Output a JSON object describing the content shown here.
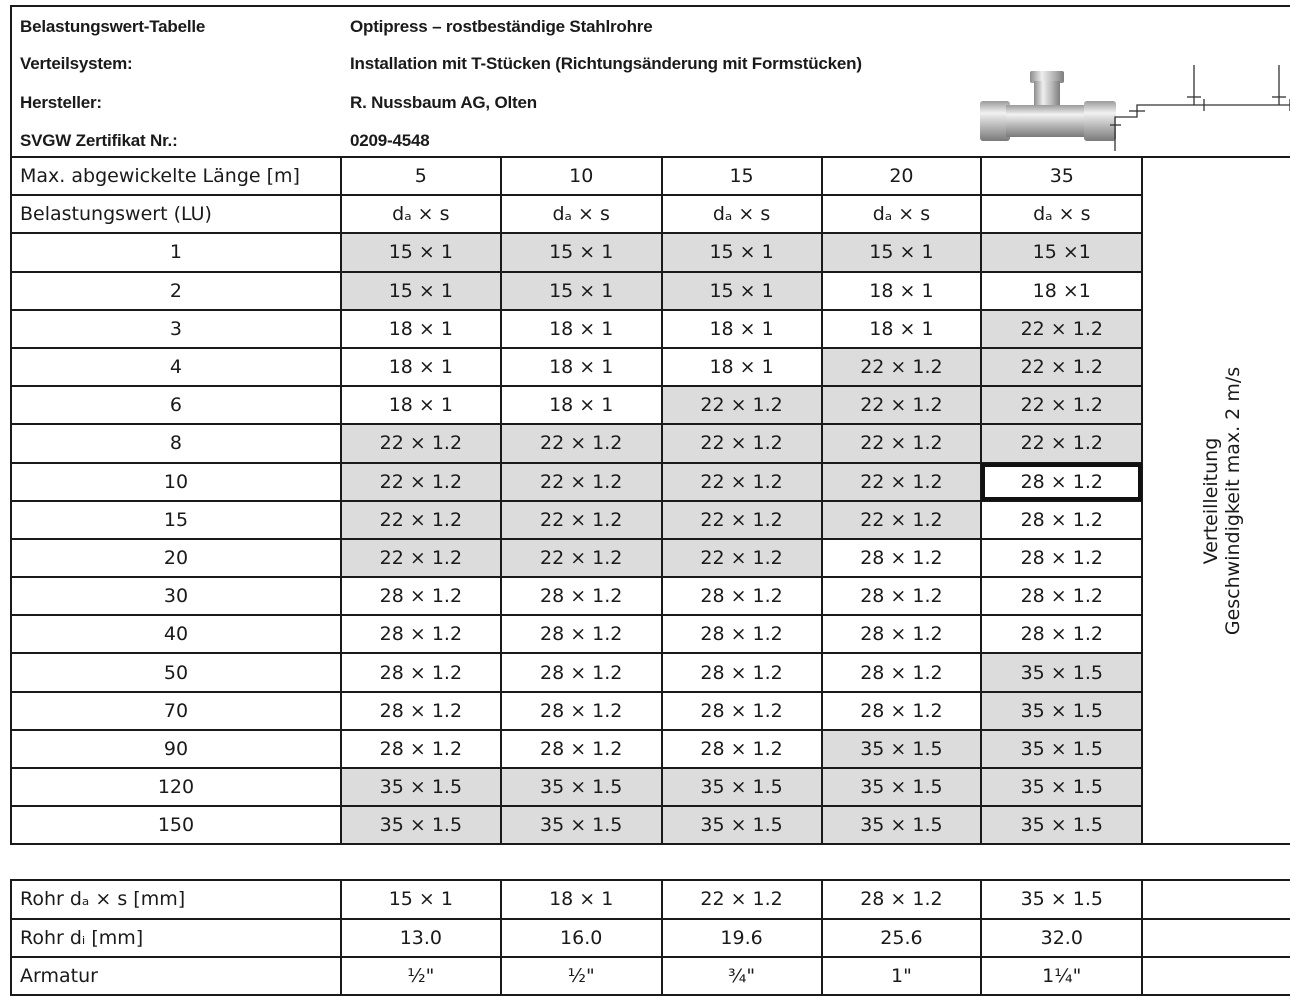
{
  "header": {
    "rows": [
      {
        "label": "Belastungswert-Tabelle",
        "value": "Optipress – rostbeständige Stahlrohre"
      },
      {
        "label": "Verteilsystem:",
        "value": "Installation mit T-Stücken (Richtungsänderung mit Formstücken)"
      },
      {
        "label": "Hersteller:",
        "value": "R. Nussbaum AG, Olten"
      },
      {
        "label": "SVGW Zertifikat Nr.:",
        "value": "0209-4548"
      }
    ]
  },
  "table": {
    "length_label": "Max. abgewickelte Länge [m]",
    "lengths": [
      "5",
      "10",
      "15",
      "20",
      "35"
    ],
    "lu_label": "Belastungswert (LU)",
    "dim_header": "dₐ × s",
    "side_text_line1": "Verteilleitung",
    "side_text_line2": "Geschwindigkeit max. 2 m/s",
    "rows": [
      {
        "lu": "1",
        "cells": [
          "15 × 1",
          "15 × 1",
          "15 × 1",
          "15 × 1",
          "15 ×1"
        ],
        "shade": [
          1,
          1,
          1,
          1,
          1
        ]
      },
      {
        "lu": "2",
        "cells": [
          "15 × 1",
          "15 × 1",
          "15 × 1",
          "18 × 1",
          "18 ×1"
        ],
        "shade": [
          1,
          1,
          1,
          0,
          0
        ]
      },
      {
        "lu": "3",
        "cells": [
          "18 × 1",
          "18 × 1",
          "18 × 1",
          "18 × 1",
          "22 × 1.2"
        ],
        "shade": [
          0,
          0,
          0,
          0,
          1
        ]
      },
      {
        "lu": "4",
        "cells": [
          "18 × 1",
          "18 × 1",
          "18 × 1",
          "22 × 1.2",
          "22 × 1.2"
        ],
        "shade": [
          0,
          0,
          0,
          1,
          1
        ]
      },
      {
        "lu": "6",
        "cells": [
          "18 × 1",
          "18 × 1",
          "22 × 1.2",
          "22 × 1.2",
          "22 × 1.2"
        ],
        "shade": [
          0,
          0,
          1,
          1,
          1
        ]
      },
      {
        "lu": "8",
        "cells": [
          "22 × 1.2",
          "22 × 1.2",
          "22 × 1.2",
          "22 × 1.2",
          "22 × 1.2"
        ],
        "shade": [
          1,
          1,
          1,
          1,
          1
        ]
      },
      {
        "lu": "10",
        "cells": [
          "22 × 1.2",
          "22 × 1.2",
          "22 × 1.2",
          "22 × 1.2",
          "28 × 1.2"
        ],
        "shade": [
          1,
          1,
          1,
          1,
          0
        ],
        "highlight": 4
      },
      {
        "lu": "15",
        "cells": [
          "22 × 1.2",
          "22 × 1.2",
          "22 × 1.2",
          "22 × 1.2",
          "28 × 1.2"
        ],
        "shade": [
          1,
          1,
          1,
          1,
          0
        ]
      },
      {
        "lu": "20",
        "cells": [
          "22 × 1.2",
          "22 × 1.2",
          "22 × 1.2",
          "28 × 1.2",
          "28 × 1.2"
        ],
        "shade": [
          1,
          1,
          1,
          0,
          0
        ]
      },
      {
        "lu": "30",
        "cells": [
          "28 × 1.2",
          "28 × 1.2",
          "28 × 1.2",
          "28 × 1.2",
          "28 × 1.2"
        ],
        "shade": [
          0,
          0,
          0,
          0,
          0
        ]
      },
      {
        "lu": "40",
        "cells": [
          "28 × 1.2",
          "28 × 1.2",
          "28 × 1.2",
          "28 × 1.2",
          "28 × 1.2"
        ],
        "shade": [
          0,
          0,
          0,
          0,
          0
        ]
      },
      {
        "lu": "50",
        "cells": [
          "28 × 1.2",
          "28 × 1.2",
          "28 × 1.2",
          "28 × 1.2",
          "35 × 1.5"
        ],
        "shade": [
          0,
          0,
          0,
          0,
          1
        ]
      },
      {
        "lu": "70",
        "cells": [
          "28 × 1.2",
          "28 × 1.2",
          "28 × 1.2",
          "28 × 1.2",
          "35 × 1.5"
        ],
        "shade": [
          0,
          0,
          0,
          0,
          1
        ]
      },
      {
        "lu": "90",
        "cells": [
          "28 × 1.2",
          "28 × 1.2",
          "28 × 1.2",
          "35 × 1.5",
          "35 × 1.5"
        ],
        "shade": [
          0,
          0,
          0,
          1,
          1
        ]
      },
      {
        "lu": "120",
        "cells": [
          "35 × 1.5",
          "35 × 1.5",
          "35 × 1.5",
          "35 × 1.5",
          "35 × 1.5"
        ],
        "shade": [
          1,
          1,
          1,
          1,
          1
        ]
      },
      {
        "lu": "150",
        "cells": [
          "35 × 1.5",
          "35 × 1.5",
          "35 × 1.5",
          "35 × 1.5",
          "35 × 1.5"
        ],
        "shade": [
          1,
          1,
          1,
          1,
          1
        ]
      }
    ],
    "footer": [
      {
        "label": "Rohr dₐ × s [mm]",
        "cells": [
          "15 × 1",
          "18 × 1",
          "22 × 1.2",
          "28 × 1.2",
          "35 × 1.5"
        ]
      },
      {
        "label": "Rohr dᵢ [mm]",
        "cells": [
          "13.0",
          "16.0",
          "19.6",
          "25.6",
          "32.0"
        ]
      },
      {
        "label": "Armatur",
        "cells": [
          "½\"",
          "½\"",
          "¾\"",
          "1\"",
          "1¼\""
        ]
      }
    ]
  },
  "colors": {
    "shade": "#dcdcdc",
    "border": "#1a1a1a"
  },
  "images": {
    "fitting": "t-fitting-image",
    "diagram": "pipe-routing-diagram"
  }
}
